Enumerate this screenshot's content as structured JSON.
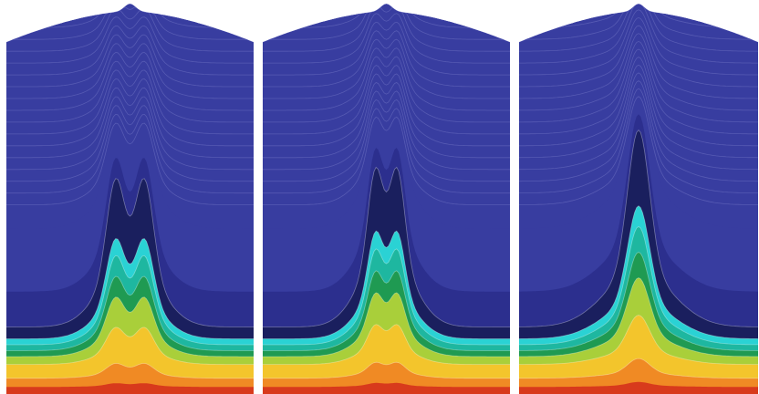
{
  "figure": {
    "panels": [
      {
        "id": "panel-1",
        "peak_profile": "double"
      },
      {
        "id": "panel-2",
        "peak_profile": "double-narrow"
      },
      {
        "id": "panel-3",
        "peak_profile": "single"
      }
    ],
    "colormap": [
      "#7f1a12",
      "#d83a1c",
      "#f08a24",
      "#f3c52c",
      "#a9cf3a",
      "#1f9a52",
      "#1eb7a0",
      "#2ad2d4",
      "#1a1f5e",
      "#2c2f8e",
      "#383da0"
    ],
    "contour_line_color": "#8e93d8"
  }
}
